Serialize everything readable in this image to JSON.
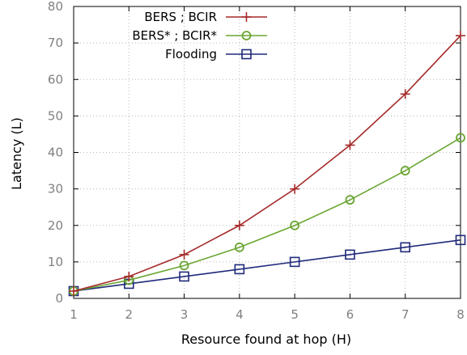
{
  "chart_data": {
    "type": "line",
    "xlabel": "Resource found at hop (H)",
    "ylabel": "Latency (L)",
    "x": [
      1,
      2,
      3,
      4,
      5,
      6,
      7,
      8
    ],
    "xlim": [
      1,
      8
    ],
    "ylim": [
      0,
      80
    ],
    "xticks": [
      "1",
      "2",
      "3",
      "4",
      "5",
      "6",
      "7",
      "8"
    ],
    "yticks": [
      "0",
      "10",
      "20",
      "30",
      "40",
      "50",
      "60",
      "70",
      "80"
    ],
    "grid": true,
    "legend_position": "top-left",
    "series": [
      {
        "name": "BERS ; BCIR",
        "values": [
          2,
          6,
          12,
          20,
          30,
          42,
          56,
          72
        ],
        "color": "#a52a2a",
        "marker": "plus"
      },
      {
        "name": "BERS* ; BCIR*",
        "values": [
          2,
          5,
          9,
          14,
          20,
          27,
          35,
          44
        ],
        "color": "#6aa632",
        "marker": "circle"
      },
      {
        "name": "Flooding",
        "values": [
          2,
          4,
          6,
          8,
          10,
          12,
          14,
          16
        ],
        "color": "#1f2a7a",
        "marker": "square"
      }
    ]
  }
}
